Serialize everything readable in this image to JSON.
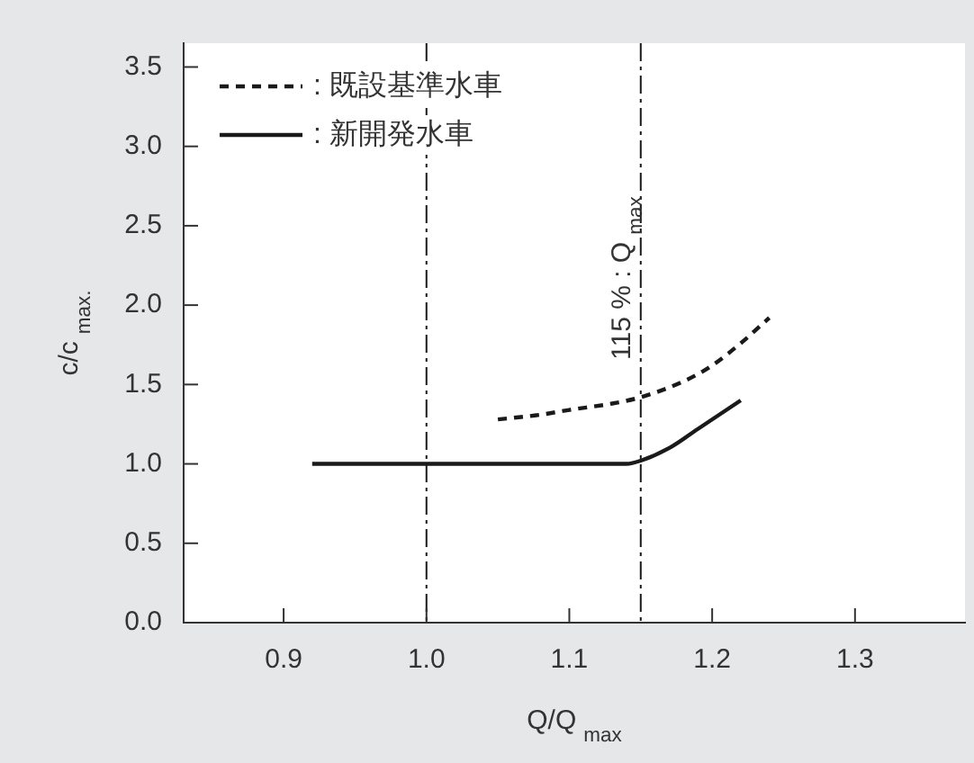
{
  "chart_data": {
    "type": "line",
    "xlabel": "Q/Q$_{max}$",
    "ylabel": "c/c$_{max.}$",
    "xlim": [
      0.83,
      1.377
    ],
    "ylim": [
      0,
      3.65
    ],
    "xticks": [
      {
        "value": 0.9,
        "label": "0.9"
      },
      {
        "value": 1.0,
        "label": "1.0"
      },
      {
        "value": 1.1,
        "label": "1.1"
      },
      {
        "value": 1.2,
        "label": "1.2"
      },
      {
        "value": 1.3,
        "label": "1.3"
      }
    ],
    "yticks": [
      {
        "value": 0,
        "label": "0.0"
      },
      {
        "value": 0.5,
        "label": "0.5"
      },
      {
        "value": 1.0,
        "label": "1.0"
      },
      {
        "value": 1.5,
        "label": "1.5"
      },
      {
        "value": 2.0,
        "label": "2.0"
      },
      {
        "value": 2.5,
        "label": "2.5"
      },
      {
        "value": 3.0,
        "label": "3.0"
      },
      {
        "value": 3.5,
        "label": "3.5"
      }
    ],
    "series": [
      {
        "name": ": 既設基準水車",
        "color": "#1a1a1a",
        "line_style": "dashed",
        "x": [
          1.05,
          1.08,
          1.1,
          1.13,
          1.15,
          1.18,
          1.2,
          1.22,
          1.24
        ],
        "values": [
          1.28,
          1.31,
          1.34,
          1.38,
          1.42,
          1.52,
          1.62,
          1.76,
          1.92
        ]
      },
      {
        "name": ": 新開発水車",
        "color": "#1a1a1a",
        "line_style": "solid",
        "x": [
          0.92,
          1.0,
          1.14,
          1.15,
          1.17,
          1.19,
          1.22
        ],
        "values": [
          1.0,
          1.0,
          1.0,
          1.02,
          1.1,
          1.22,
          1.4
        ]
      }
    ],
    "ref_lines": [
      {
        "axis": "x",
        "value": 1.0,
        "line_style": "dashdot",
        "color": "#1a1a1a"
      },
      {
        "axis": "x",
        "value": 1.15,
        "label": "115 % : Q$_{max}$",
        "line_style": "dashdot",
        "color": "#1a1a1a"
      }
    ],
    "grid": false,
    "legend": "top left",
    "marker": "none"
  }
}
